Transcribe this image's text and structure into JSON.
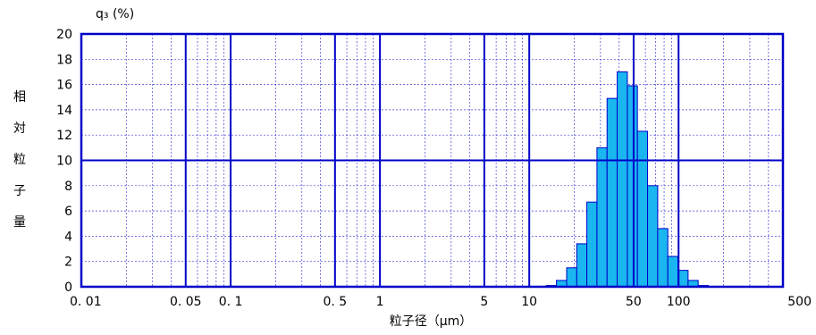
{
  "chart_data": {
    "type": "bar",
    "title": "",
    "y_unit_label": "q₃ (%)",
    "ylabel": "相対粒子量",
    "xlabel": "粒子径（μm）",
    "x_scale": "log",
    "xlim": [
      0.01,
      500
    ],
    "ylim": [
      0,
      20
    ],
    "x_tick_labels": [
      {
        "value": 0.01,
        "label": "0. 01"
      },
      {
        "value": 0.05,
        "label": "0. 05"
      },
      {
        "value": 0.1,
        "label": "0. 1"
      },
      {
        "value": 0.5,
        "label": "0. 5"
      },
      {
        "value": 1,
        "label": "1"
      },
      {
        "value": 5,
        "label": "5"
      },
      {
        "value": 10,
        "label": "10"
      },
      {
        "value": 50,
        "label": "50"
      },
      {
        "value": 100,
        "label": "100"
      },
      {
        "value": 500,
        "label": "500"
      }
    ],
    "y_ticks": [
      0,
      2,
      4,
      6,
      8,
      10,
      12,
      14,
      16,
      18,
      20
    ],
    "major_x_gridlines": [
      0.05,
      0.1,
      0.5,
      1,
      5,
      10,
      50,
      100
    ],
    "major_y_gridlines": [
      10
    ],
    "grid": true,
    "bar_color": "#19b6f0",
    "bar_edge_color": "#0000c8",
    "frame_color": "#0000c8",
    "bins": [
      {
        "x0": 13.0,
        "x1": 15.2,
        "value": 0.1
      },
      {
        "x0": 15.2,
        "x1": 17.8,
        "value": 0.5
      },
      {
        "x0": 17.8,
        "x1": 20.8,
        "value": 1.5
      },
      {
        "x0": 20.8,
        "x1": 24.3,
        "value": 3.4
      },
      {
        "x0": 24.3,
        "x1": 28.4,
        "value": 6.7
      },
      {
        "x0": 28.4,
        "x1": 33.2,
        "value": 11.0
      },
      {
        "x0": 33.2,
        "x1": 38.8,
        "value": 14.9
      },
      {
        "x0": 38.8,
        "x1": 45.4,
        "value": 17.0
      },
      {
        "x0": 45.4,
        "x1": 53.0,
        "value": 15.9
      },
      {
        "x0": 53.0,
        "x1": 62.0,
        "value": 12.3
      },
      {
        "x0": 62.0,
        "x1": 72.5,
        "value": 8.0
      },
      {
        "x0": 72.5,
        "x1": 84.7,
        "value": 4.6
      },
      {
        "x0": 84.7,
        "x1": 99.0,
        "value": 2.4
      },
      {
        "x0": 99.0,
        "x1": 115.8,
        "value": 1.3
      },
      {
        "x0": 115.8,
        "x1": 135.3,
        "value": 0.5
      },
      {
        "x0": 135.3,
        "x1": 158.2,
        "value": 0.1
      }
    ]
  }
}
